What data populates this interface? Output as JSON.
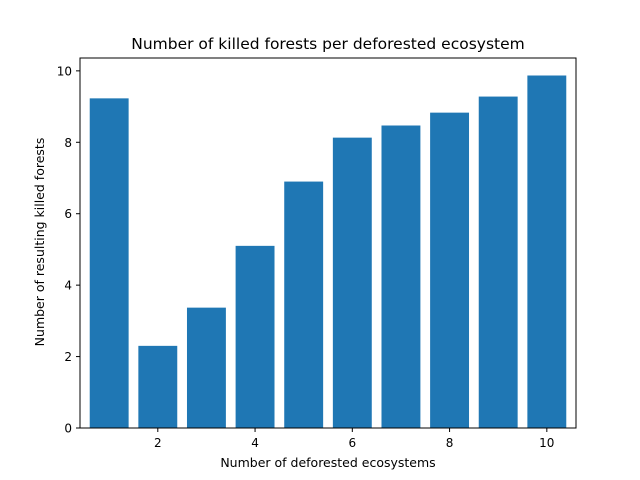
{
  "chart_data": {
    "type": "bar",
    "title": "Number of killed forests per deforested ecosystem",
    "xlabel": "Number of deforested ecosystems",
    "ylabel": "Number of resulting killed forests",
    "categories": [
      1,
      2,
      3,
      4,
      5,
      6,
      7,
      8,
      9,
      10
    ],
    "values": [
      9.23,
      2.3,
      3.37,
      5.1,
      6.9,
      8.13,
      8.47,
      8.83,
      9.28,
      9.87
    ],
    "xlim": [
      0.4,
      10.6
    ],
    "ylim": [
      0,
      10.36
    ],
    "xticks": [
      2,
      4,
      6,
      8,
      10
    ],
    "yticks": [
      0,
      2,
      4,
      6,
      8,
      10
    ],
    "bar_color": "#1f77b4",
    "grid": false,
    "legend": "none"
  }
}
